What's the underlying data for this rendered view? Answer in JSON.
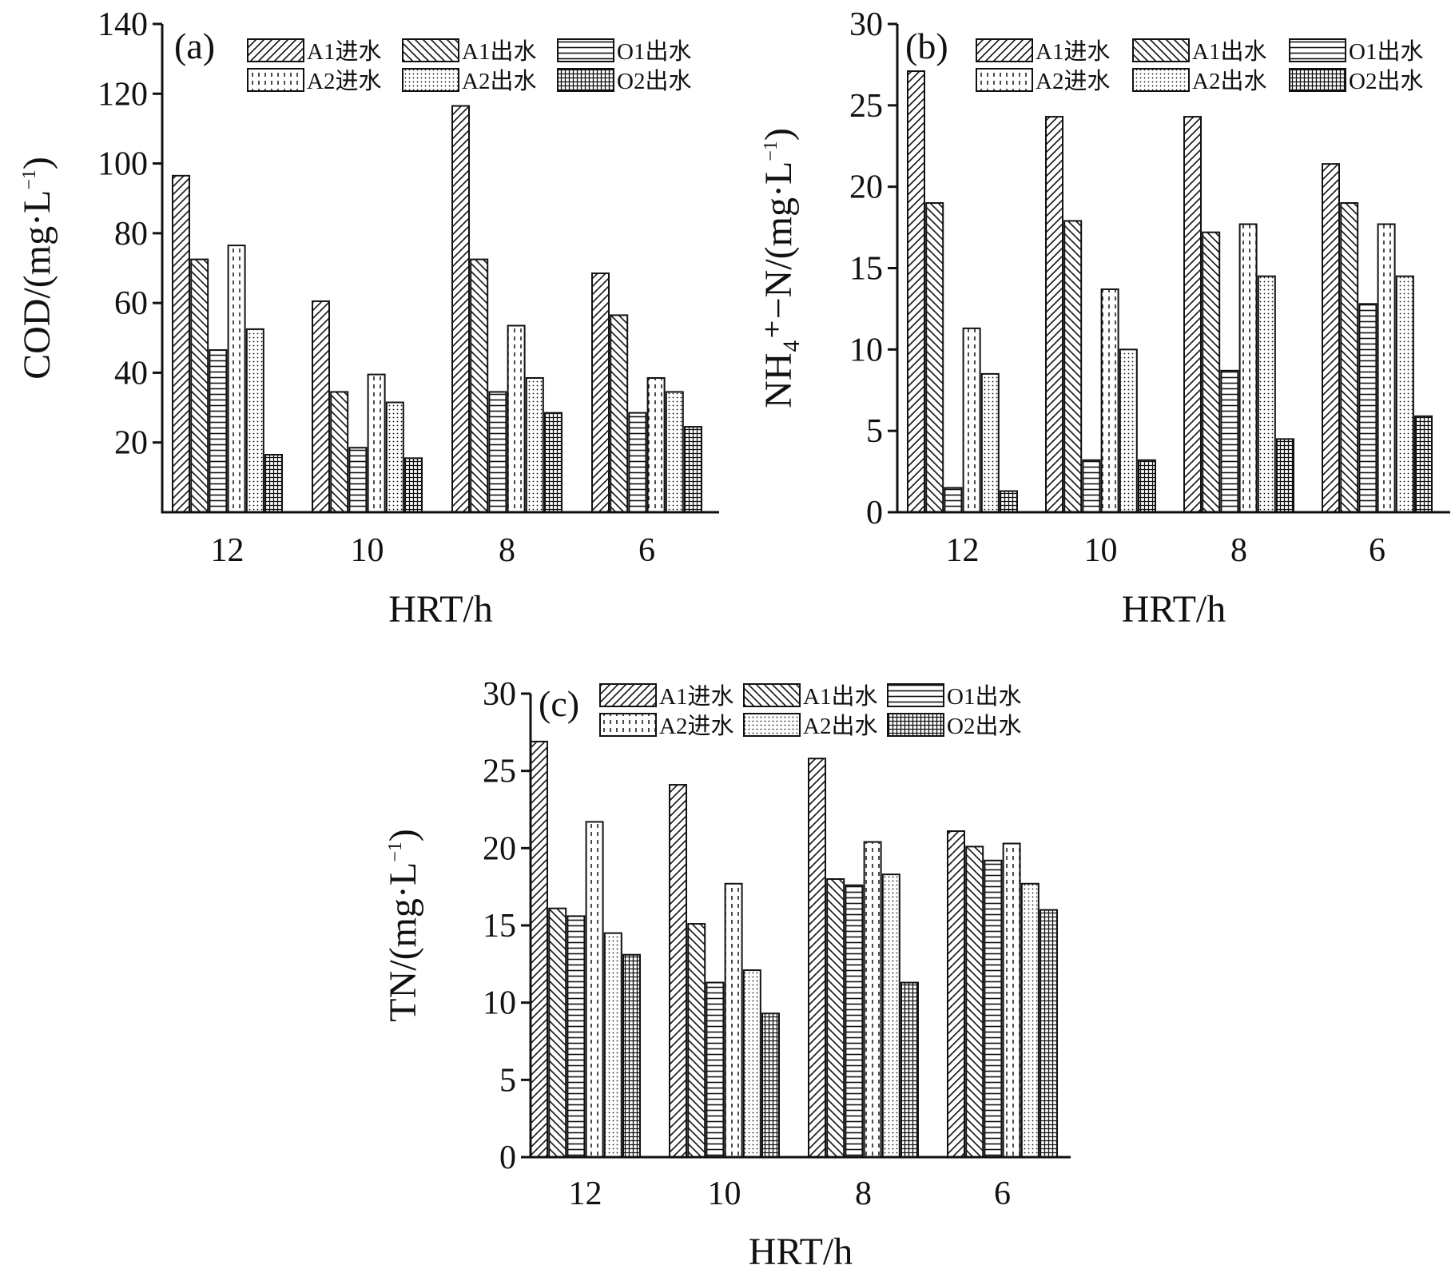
{
  "colors": {
    "ink": "#111111",
    "background": "#ffffff"
  },
  "series_patterns": [
    "diag-right",
    "diag-left",
    "horiz",
    "dash-vert",
    "dots",
    "grid"
  ],
  "legend_labels": [
    "A1进水",
    "A1出水",
    "O1出水",
    "A2进水",
    "A2出水",
    "O2出水"
  ],
  "chart_data": [
    {
      "type": "bar",
      "panel_label": "(a)",
      "categories": [
        "12",
        "10",
        "8",
        "6"
      ],
      "xlabel": "HRT/h",
      "ylabel": "COD/(mg·L",
      "ylabel_sup": "−1",
      "ylabel_close": ")",
      "ylim": [
        0,
        140
      ],
      "yticks": [
        20,
        40,
        60,
        80,
        100,
        120,
        140
      ],
      "ytick_labels": [
        "20",
        "40",
        "60",
        "80",
        "100",
        "120",
        "140"
      ],
      "series": [
        {
          "name": "A1进水",
          "values": [
            96.5,
            60.5,
            116.5,
            68.5
          ]
        },
        {
          "name": "A1出水",
          "values": [
            72.5,
            34.5,
            72.5,
            56.5
          ]
        },
        {
          "name": "O1出水",
          "values": [
            46.5,
            18.5,
            34.5,
            28.5
          ]
        },
        {
          "name": "A2进水",
          "values": [
            76.5,
            39.5,
            53.5,
            38.5
          ]
        },
        {
          "name": "A2出水",
          "values": [
            52.5,
            31.5,
            38.5,
            34.5
          ]
        },
        {
          "name": "O2出水",
          "values": [
            16.5,
            15.5,
            28.5,
            24.5
          ]
        }
      ]
    },
    {
      "type": "bar",
      "panel_label": "(b)",
      "categories": [
        "12",
        "10",
        "8",
        "6"
      ],
      "xlabel": "HRT/h",
      "ylabel": "NH₄⁺−N/(mg·L",
      "ylabel_sup": "−1",
      "ylabel_close": ")",
      "ylim": [
        0,
        30
      ],
      "yticks": [
        0,
        5,
        10,
        15,
        20,
        25,
        30
      ],
      "ytick_labels": [
        "0",
        "5",
        "10",
        "15",
        "20",
        "25",
        "30"
      ],
      "series": [
        {
          "name": "A1进水",
          "values": [
            27.1,
            24.3,
            24.3,
            21.4
          ]
        },
        {
          "name": "A1出水",
          "values": [
            19.0,
            17.9,
            17.2,
            19.0
          ]
        },
        {
          "name": "O1出水",
          "values": [
            1.5,
            3.2,
            8.7,
            12.8
          ]
        },
        {
          "name": "A2进水",
          "values": [
            11.3,
            13.7,
            17.7,
            17.7
          ]
        },
        {
          "name": "A2出水",
          "values": [
            8.5,
            10.0,
            14.5,
            14.5
          ]
        },
        {
          "name": "O2出水",
          "values": [
            1.3,
            3.2,
            4.5,
            5.9
          ]
        }
      ]
    },
    {
      "type": "bar",
      "panel_label": "(c)",
      "categories": [
        "12",
        "10",
        "8",
        "6"
      ],
      "xlabel": "HRT/h",
      "ylabel": "TN/(mg·L",
      "ylabel_sup": "−1",
      "ylabel_close": ")",
      "ylim": [
        0,
        30
      ],
      "yticks": [
        0,
        5,
        10,
        15,
        20,
        25,
        30
      ],
      "ytick_labels": [
        "0",
        "5",
        "10",
        "15",
        "20",
        "25",
        "30"
      ],
      "series": [
        {
          "name": "A1进水",
          "values": [
            26.9,
            24.1,
            25.8,
            21.1
          ]
        },
        {
          "name": "A1出水",
          "values": [
            16.1,
            15.1,
            18.0,
            20.1
          ]
        },
        {
          "name": "O1出水",
          "values": [
            15.6,
            11.3,
            17.6,
            19.2
          ]
        },
        {
          "name": "A2进水",
          "values": [
            21.7,
            17.7,
            20.4,
            20.3
          ]
        },
        {
          "name": "A2出水",
          "values": [
            14.5,
            12.1,
            18.3,
            17.7
          ]
        },
        {
          "name": "O2出水",
          "values": [
            13.1,
            9.3,
            11.3,
            16.0
          ]
        }
      ]
    }
  ]
}
